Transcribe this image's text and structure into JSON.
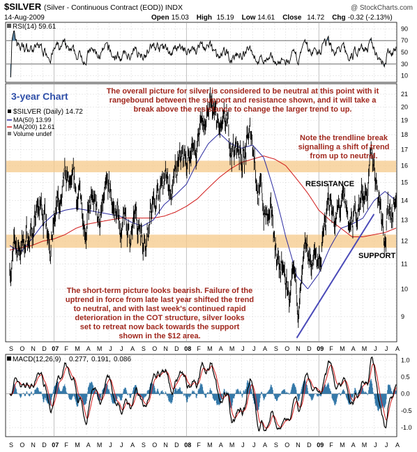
{
  "header": {
    "symbol": "$SILVER",
    "description": "(Silver - Continuous Contract (EOD)) INDX",
    "source": "@ StockCharts.com",
    "date": "14-Aug-2009",
    "quote_labels": [
      "Open",
      "High",
      "Low",
      "Close",
      "Chg"
    ],
    "quote_values": [
      "15.03",
      "15.19",
      "14.61",
      "14.72",
      "-0.32 (-2.13%)"
    ]
  },
  "rsi_panel": {
    "legend": "RSI(14) 59.61",
    "levels": [
      "90",
      "70",
      "50",
      "30",
      "10"
    ]
  },
  "price_panel": {
    "legend_main": "$SILVER (Daily) 14.72",
    "legend_ma50": "MA(50) 13.99",
    "legend_ma200": "MA(200) 12.61",
    "legend_volume": "Volume undef",
    "price_ticks": [
      "21",
      "20",
      "19",
      "18",
      "17",
      "16",
      "15",
      "14",
      "13",
      "12",
      "11",
      "10",
      "9"
    ]
  },
  "macd_panel": {
    "legend_prefix": "MACD(12,26,9)",
    "macd_value": "0.277,",
    "signal_value": "0.191,",
    "hist_value": "0.086",
    "ticks": [
      "1.0",
      "0.5",
      "0.0",
      "-0.5",
      "-1.0"
    ]
  },
  "annotations": {
    "chart_label": "3-year Chart",
    "overall": [
      "The overall picture for silver is considered to be neutral at this point with it",
      "rangebound between the support and resistance shown, and it will take a",
      "break above the resistance to change the larger trend to up."
    ],
    "trendline_note": [
      "Note the trendline break",
      "signalling a shift of trend",
      "from up to neutral."
    ],
    "resistance": "RESISTANCE",
    "support": "SUPPORT",
    "short_term": [
      "The short-term picture looks bearish. Failure of the",
      "uptrend in force from late last year shifted the trend",
      "to neutral, and with last week's continued rapid",
      "deterioration in the COT structure, silver looks",
      "set to retreat now back towards the support",
      "shown in the $12 area."
    ]
  },
  "x_axis": {
    "labels": [
      "S",
      "O",
      "N",
      "D",
      "07",
      "F",
      "M",
      "A",
      "M",
      "J",
      "J",
      "A",
      "S",
      "O",
      "N",
      "D",
      "08",
      "F",
      "M",
      "A",
      "M",
      "J",
      "J",
      "A",
      "S",
      "O",
      "N",
      "D",
      "09",
      "F",
      "M",
      "A",
      "M",
      "J",
      "J",
      "A"
    ],
    "bold": [
      "07",
      "08",
      "09"
    ]
  },
  "colors": {
    "price": "#000000",
    "ma50": "#2a2aa0",
    "ma200": "#d01818",
    "band": "#f5c98a",
    "trendline": "#4a4ab8",
    "annotation": "#a0281e",
    "title_blue": "#2f4fa8",
    "rsi_fill": "#5d86a6",
    "macd_hist": "#1f6aa0"
  },
  "chart_data": [
    {
      "type": "line",
      "title": "RSI(14)",
      "ylim": [
        0,
        100
      ],
      "ticks": [
        90,
        70,
        50,
        30,
        10
      ],
      "reference_lines": [
        70,
        30
      ],
      "last_value": 59.61
    },
    {
      "type": "line",
      "title": "$SILVER (Daily)",
      "x": [
        "2006-09",
        "2006-10",
        "2006-11",
        "2006-12",
        "2007-01",
        "2007-02",
        "2007-03",
        "2007-04",
        "2007-05",
        "2007-06",
        "2007-07",
        "2007-08",
        "2007-09",
        "2007-10",
        "2007-11",
        "2007-12",
        "2008-01",
        "2008-02",
        "2008-03",
        "2008-04",
        "2008-05",
        "2008-06",
        "2008-07",
        "2008-08",
        "2008-09",
        "2008-10",
        "2008-11",
        "2008-12",
        "2009-01",
        "2009-02",
        "2009-03",
        "2009-04",
        "2009-05",
        "2009-06",
        "2009-07",
        "2009-08"
      ],
      "series": [
        {
          "name": "$SILVER",
          "values": [
            11.2,
            11.8,
            12.6,
            13.5,
            13.2,
            14.0,
            13.4,
            13.7,
            13.1,
            13.4,
            12.8,
            12.1,
            12.9,
            13.7,
            14.6,
            14.6,
            16.0,
            17.9,
            19.5,
            17.2,
            16.8,
            17.0,
            17.6,
            13.5,
            11.8,
            9.8,
            9.0,
            10.5,
            11.2,
            13.5,
            13.2,
            12.3,
            14.7,
            15.8,
            13.4,
            14.72
          ]
        },
        {
          "name": "MA(50)",
          "values": [
            11.8,
            11.5,
            12.1,
            12.8,
            13.3,
            13.5,
            13.6,
            13.5,
            13.4,
            13.3,
            13.2,
            12.9,
            12.7,
            13.0,
            13.8,
            14.3,
            14.9,
            16.2,
            17.4,
            18.1,
            17.4,
            17.1,
            17.3,
            16.5,
            14.4,
            12.2,
            10.5,
            10.0,
            10.6,
            11.7,
            12.6,
            12.8,
            13.1,
            14.0,
            14.5,
            13.99
          ]
        },
        {
          "name": "MA(200)",
          "values": [
            11.6,
            11.7,
            11.8,
            12.0,
            12.1,
            12.3,
            12.6,
            12.8,
            12.9,
            13.0,
            13.1,
            13.1,
            13.1,
            13.1,
            13.2,
            13.4,
            13.7,
            14.1,
            14.7,
            15.3,
            15.8,
            16.2,
            16.4,
            16.6,
            16.4,
            16.0,
            15.2,
            14.4,
            13.5,
            13.0,
            12.6,
            12.2,
            12.2,
            12.3,
            12.4,
            12.61
          ]
        }
      ],
      "ylim": [
        8.2,
        21.8
      ],
      "ylog": true,
      "y_ticks": [
        21,
        20,
        19,
        18,
        17,
        16,
        15,
        14,
        13,
        12,
        11,
        10,
        9
      ],
      "bands": [
        {
          "label": "RESISTANCE",
          "range": [
            15.6,
            16.3
          ]
        },
        {
          "label": "SUPPORT",
          "range": [
            11.7,
            12.3
          ]
        }
      ],
      "trendline": {
        "from": {
          "x": "2008-11",
          "y": 8.3
        },
        "to": {
          "x": "2009-06",
          "y": 13.3
        }
      }
    },
    {
      "type": "line",
      "title": "MACD(12,26,9)",
      "ylim": [
        -1.25,
        1.15
      ],
      "ticks": [
        1.0,
        0.5,
        0.0,
        -0.5,
        -1.0
      ],
      "series": [
        {
          "name": "MACD",
          "last": 0.277
        },
        {
          "name": "Signal",
          "last": 0.191
        },
        {
          "name": "Histogram",
          "last": 0.086
        }
      ]
    }
  ]
}
